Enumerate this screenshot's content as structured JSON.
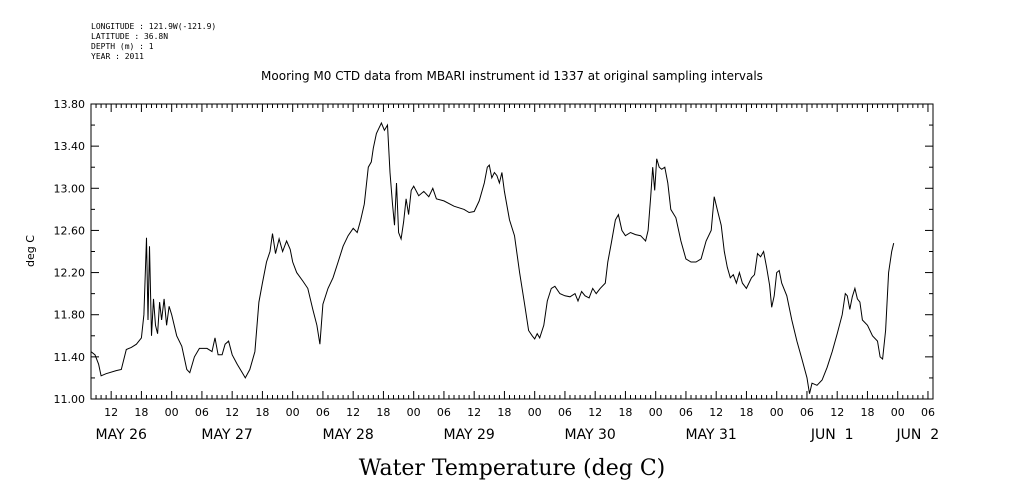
{
  "header_info": {
    "longitude": "LONGITUDE : 121.9W(-121.9)",
    "latitude": "LATITUDE : 36.8N",
    "depth": "DEPTH (m) : 1",
    "year": "YEAR : 2011"
  },
  "chart_data": {
    "type": "line",
    "title": "Mooring M0 CTD data from MBARI instrument id 1337 at original sampling intervals",
    "ylabel": "deg C",
    "xlabel": "Water Temperature (deg C)",
    "ylim": [
      11.0,
      13.8
    ],
    "xlim_hours": [
      0,
      167
    ],
    "y_ticks": [
      "11.00",
      "11.40",
      "11.80",
      "12.20",
      "12.60",
      "13.00",
      "13.40",
      "13.80"
    ],
    "x_hour_ticks": [
      {
        "t": 4,
        "label": "12"
      },
      {
        "t": 10,
        "label": "18"
      },
      {
        "t": 16,
        "label": "00"
      },
      {
        "t": 22,
        "label": "06"
      },
      {
        "t": 28,
        "label": "12"
      },
      {
        "t": 34,
        "label": "18"
      },
      {
        "t": 40,
        "label": "00"
      },
      {
        "t": 46,
        "label": "06"
      },
      {
        "t": 52,
        "label": "12"
      },
      {
        "t": 58,
        "label": "18"
      },
      {
        "t": 64,
        "label": "00"
      },
      {
        "t": 70,
        "label": "06"
      },
      {
        "t": 76,
        "label": "12"
      },
      {
        "t": 82,
        "label": "18"
      },
      {
        "t": 88,
        "label": "00"
      },
      {
        "t": 94,
        "label": "06"
      },
      {
        "t": 100,
        "label": "12"
      },
      {
        "t": 106,
        "label": "18"
      },
      {
        "t": 112,
        "label": "00"
      },
      {
        "t": 118,
        "label": "06"
      },
      {
        "t": 124,
        "label": "12"
      },
      {
        "t": 130,
        "label": "18"
      },
      {
        "t": 136,
        "label": "00"
      },
      {
        "t": 142,
        "label": "06"
      },
      {
        "t": 148,
        "label": "12"
      },
      {
        "t": 154,
        "label": "18"
      },
      {
        "t": 160,
        "label": "00"
      },
      {
        "t": 166,
        "label": "06"
      }
    ],
    "x_day_labels": [
      {
        "t": 6,
        "label": "MAY 26"
      },
      {
        "t": 27,
        "label": "MAY 27"
      },
      {
        "t": 51,
        "label": "MAY 28"
      },
      {
        "t": 75,
        "label": "MAY 29"
      },
      {
        "t": 99,
        "label": "MAY 30"
      },
      {
        "t": 123,
        "label": "MAY 31"
      },
      {
        "t": 147,
        "label": "JUN  1"
      },
      {
        "t": 164,
        "label": "JUN  2"
      }
    ],
    "series": [
      {
        "points": [
          [
            0,
            11.45
          ],
          [
            0.8,
            11.42
          ],
          [
            1.5,
            11.33
          ],
          [
            2,
            11.22
          ],
          [
            3,
            11.24
          ],
          [
            5,
            11.27
          ],
          [
            6,
            11.28
          ],
          [
            7,
            11.47
          ],
          [
            8,
            11.49
          ],
          [
            9,
            11.52
          ],
          [
            10,
            11.58
          ],
          [
            10.5,
            11.8
          ],
          [
            11,
            12.53
          ],
          [
            11.3,
            11.75
          ],
          [
            11.6,
            12.45
          ],
          [
            12,
            11.6
          ],
          [
            12.4,
            11.95
          ],
          [
            12.8,
            11.7
          ],
          [
            13.2,
            11.62
          ],
          [
            13.6,
            11.92
          ],
          [
            14,
            11.75
          ],
          [
            14.5,
            11.95
          ],
          [
            15,
            11.7
          ],
          [
            15.5,
            11.88
          ],
          [
            16,
            11.8
          ],
          [
            17,
            11.6
          ],
          [
            18,
            11.5
          ],
          [
            19,
            11.28
          ],
          [
            19.6,
            11.25
          ],
          [
            20.5,
            11.4
          ],
          [
            21.5,
            11.48
          ],
          [
            23,
            11.48
          ],
          [
            24,
            11.45
          ],
          [
            24.6,
            11.58
          ],
          [
            25.2,
            11.42
          ],
          [
            26,
            11.42
          ],
          [
            26.6,
            11.52
          ],
          [
            27.3,
            11.55
          ],
          [
            28,
            11.42
          ],
          [
            29,
            11.33
          ],
          [
            30,
            11.25
          ],
          [
            30.6,
            11.2
          ],
          [
            31.5,
            11.28
          ],
          [
            32.5,
            11.45
          ],
          [
            33.3,
            11.92
          ],
          [
            34,
            12.1
          ],
          [
            34.8,
            12.3
          ],
          [
            35.5,
            12.4
          ],
          [
            36,
            12.57
          ],
          [
            36.6,
            12.38
          ],
          [
            37.3,
            12.52
          ],
          [
            38,
            12.4
          ],
          [
            38.8,
            12.5
          ],
          [
            39.5,
            12.42
          ],
          [
            40,
            12.3
          ],
          [
            40.8,
            12.2
          ],
          [
            42,
            12.12
          ],
          [
            43,
            12.05
          ],
          [
            44,
            11.85
          ],
          [
            44.8,
            11.7
          ],
          [
            45.4,
            11.52
          ],
          [
            46,
            11.9
          ],
          [
            47,
            12.05
          ],
          [
            48,
            12.15
          ],
          [
            49,
            12.3
          ],
          [
            50,
            12.45
          ],
          [
            51,
            12.55
          ],
          [
            52,
            12.62
          ],
          [
            52.8,
            12.58
          ],
          [
            53.5,
            12.7
          ],
          [
            54.2,
            12.85
          ],
          [
            55,
            13.2
          ],
          [
            55.6,
            13.25
          ],
          [
            56,
            13.38
          ],
          [
            56.6,
            13.52
          ],
          [
            57.2,
            13.58
          ],
          [
            57.6,
            13.62
          ],
          [
            58.2,
            13.55
          ],
          [
            58.8,
            13.6
          ],
          [
            59.3,
            13.15
          ],
          [
            59.8,
            12.85
          ],
          [
            60.2,
            12.65
          ],
          [
            60.6,
            13.05
          ],
          [
            61,
            12.58
          ],
          [
            61.5,
            12.52
          ],
          [
            62,
            12.68
          ],
          [
            62.5,
            12.9
          ],
          [
            63,
            12.75
          ],
          [
            63.5,
            12.98
          ],
          [
            64,
            13.02
          ],
          [
            65,
            12.93
          ],
          [
            66,
            12.97
          ],
          [
            67,
            12.92
          ],
          [
            67.8,
            13.0
          ],
          [
            68.5,
            12.9
          ],
          [
            70,
            12.88
          ],
          [
            72,
            12.83
          ],
          [
            74,
            12.8
          ],
          [
            75,
            12.77
          ],
          [
            76,
            12.78
          ],
          [
            77,
            12.88
          ],
          [
            78,
            13.05
          ],
          [
            78.6,
            13.2
          ],
          [
            79,
            13.22
          ],
          [
            79.5,
            13.1
          ],
          [
            80,
            13.15
          ],
          [
            80.5,
            13.12
          ],
          [
            81,
            13.05
          ],
          [
            81.5,
            13.15
          ],
          [
            82,
            12.97
          ],
          [
            83,
            12.7
          ],
          [
            84,
            12.55
          ],
          [
            85,
            12.2
          ],
          [
            86,
            11.9
          ],
          [
            86.8,
            11.65
          ],
          [
            87.5,
            11.6
          ],
          [
            88,
            11.57
          ],
          [
            88.5,
            11.62
          ],
          [
            89,
            11.58
          ],
          [
            89.8,
            11.7
          ],
          [
            90.5,
            11.93
          ],
          [
            91.3,
            12.05
          ],
          [
            92,
            12.07
          ],
          [
            93,
            12.0
          ],
          [
            94,
            11.98
          ],
          [
            95,
            11.97
          ],
          [
            96,
            12.0
          ],
          [
            96.6,
            11.93
          ],
          [
            97.3,
            12.02
          ],
          [
            98,
            11.98
          ],
          [
            98.8,
            11.96
          ],
          [
            99.5,
            12.05
          ],
          [
            100.2,
            12.0
          ],
          [
            101,
            12.05
          ],
          [
            102,
            12.1
          ],
          [
            102.5,
            12.3
          ],
          [
            103.2,
            12.48
          ],
          [
            104,
            12.7
          ],
          [
            104.6,
            12.75
          ],
          [
            105.3,
            12.6
          ],
          [
            106,
            12.55
          ],
          [
            107,
            12.58
          ],
          [
            108,
            12.56
          ],
          [
            109,
            12.55
          ],
          [
            110,
            12.5
          ],
          [
            110.5,
            12.6
          ],
          [
            111,
            12.92
          ],
          [
            111.4,
            13.2
          ],
          [
            111.8,
            12.98
          ],
          [
            112.2,
            13.28
          ],
          [
            112.7,
            13.2
          ],
          [
            113.2,
            13.18
          ],
          [
            113.8,
            13.2
          ],
          [
            114.4,
            13.05
          ],
          [
            115,
            12.8
          ],
          [
            116,
            12.72
          ],
          [
            117,
            12.5
          ],
          [
            118,
            12.33
          ],
          [
            119,
            12.3
          ],
          [
            120,
            12.3
          ],
          [
            121,
            12.33
          ],
          [
            122,
            12.5
          ],
          [
            123,
            12.6
          ],
          [
            123.6,
            12.92
          ],
          [
            124.2,
            12.8
          ],
          [
            125,
            12.65
          ],
          [
            125.6,
            12.4
          ],
          [
            126.2,
            12.25
          ],
          [
            126.8,
            12.15
          ],
          [
            127.4,
            12.18
          ],
          [
            128,
            12.1
          ],
          [
            128.6,
            12.2
          ],
          [
            129.2,
            12.1
          ],
          [
            130,
            12.05
          ],
          [
            131,
            12.15
          ],
          [
            131.6,
            12.18
          ],
          [
            132.2,
            12.38
          ],
          [
            132.8,
            12.35
          ],
          [
            133.4,
            12.4
          ],
          [
            134,
            12.25
          ],
          [
            134.6,
            12.08
          ],
          [
            135,
            11.87
          ],
          [
            135.5,
            11.98
          ],
          [
            136,
            12.2
          ],
          [
            136.5,
            12.22
          ],
          [
            137,
            12.1
          ],
          [
            138,
            11.98
          ],
          [
            139,
            11.75
          ],
          [
            140,
            11.55
          ],
          [
            141,
            11.38
          ],
          [
            142,
            11.2
          ],
          [
            142.5,
            11.05
          ],
          [
            143,
            11.15
          ],
          [
            144,
            11.13
          ],
          [
            145,
            11.18
          ],
          [
            146,
            11.3
          ],
          [
            147,
            11.45
          ],
          [
            148,
            11.62
          ],
          [
            149,
            11.8
          ],
          [
            149.6,
            12.0
          ],
          [
            150,
            11.98
          ],
          [
            150.5,
            11.85
          ],
          [
            151,
            11.97
          ],
          [
            151.5,
            12.05
          ],
          [
            152,
            11.95
          ],
          [
            152.5,
            11.92
          ],
          [
            153,
            11.75
          ],
          [
            154,
            11.7
          ],
          [
            155,
            11.6
          ],
          [
            156,
            11.55
          ],
          [
            156.5,
            11.4
          ],
          [
            157,
            11.38
          ],
          [
            157.6,
            11.65
          ],
          [
            158.2,
            12.2
          ],
          [
            158.8,
            12.4
          ],
          [
            159.2,
            12.48
          ]
        ]
      }
    ]
  }
}
